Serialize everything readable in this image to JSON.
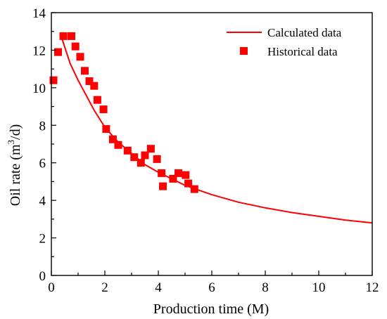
{
  "chart_data": {
    "type": "scatter",
    "title": "",
    "xlabel": "Production time (M)",
    "ylabel_prefix": "Oil rate (m",
    "ylabel_sup": "3",
    "ylabel_suffix": "/d)",
    "xlim": [
      0,
      12
    ],
    "ylim": [
      0,
      14
    ],
    "xticks": [
      0,
      2,
      4,
      6,
      8,
      10,
      12
    ],
    "yticks": [
      0,
      2,
      4,
      6,
      8,
      10,
      12,
      14
    ],
    "grid": false,
    "legend_position": "top-right",
    "series": [
      {
        "name": "Calculated data",
        "kind": "line",
        "color": "#ff0000",
        "x": [
          0.4,
          0.7,
          1.0,
          1.3,
          1.6,
          2.0,
          2.5,
          3.0,
          3.5,
          4.0,
          5.0,
          6.0,
          7.0,
          8.0,
          9.0,
          10.0,
          11.0,
          12.0
        ],
        "y": [
          12.6,
          11.3,
          10.4,
          9.6,
          8.8,
          7.9,
          7.1,
          6.5,
          5.9,
          5.5,
          4.8,
          4.3,
          3.9,
          3.6,
          3.35,
          3.15,
          2.95,
          2.8
        ]
      },
      {
        "name": "Historical data",
        "kind": "scatter",
        "color": "#ff0000",
        "x": [
          0.08,
          0.25,
          0.45,
          0.75,
          0.9,
          1.08,
          1.25,
          1.42,
          1.6,
          1.72,
          1.95,
          2.05,
          2.3,
          2.5,
          2.85,
          3.1,
          3.35,
          3.5,
          3.72,
          3.95,
          4.12,
          4.17,
          4.55,
          4.75,
          5.02,
          5.12,
          5.35
        ],
        "y": [
          10.4,
          11.9,
          12.75,
          12.75,
          12.2,
          11.65,
          10.9,
          10.35,
          10.1,
          9.35,
          8.85,
          7.8,
          7.25,
          6.95,
          6.65,
          6.3,
          6.0,
          6.4,
          6.75,
          6.2,
          5.45,
          4.75,
          5.15,
          5.45,
          5.35,
          4.9,
          4.6
        ]
      }
    ]
  }
}
